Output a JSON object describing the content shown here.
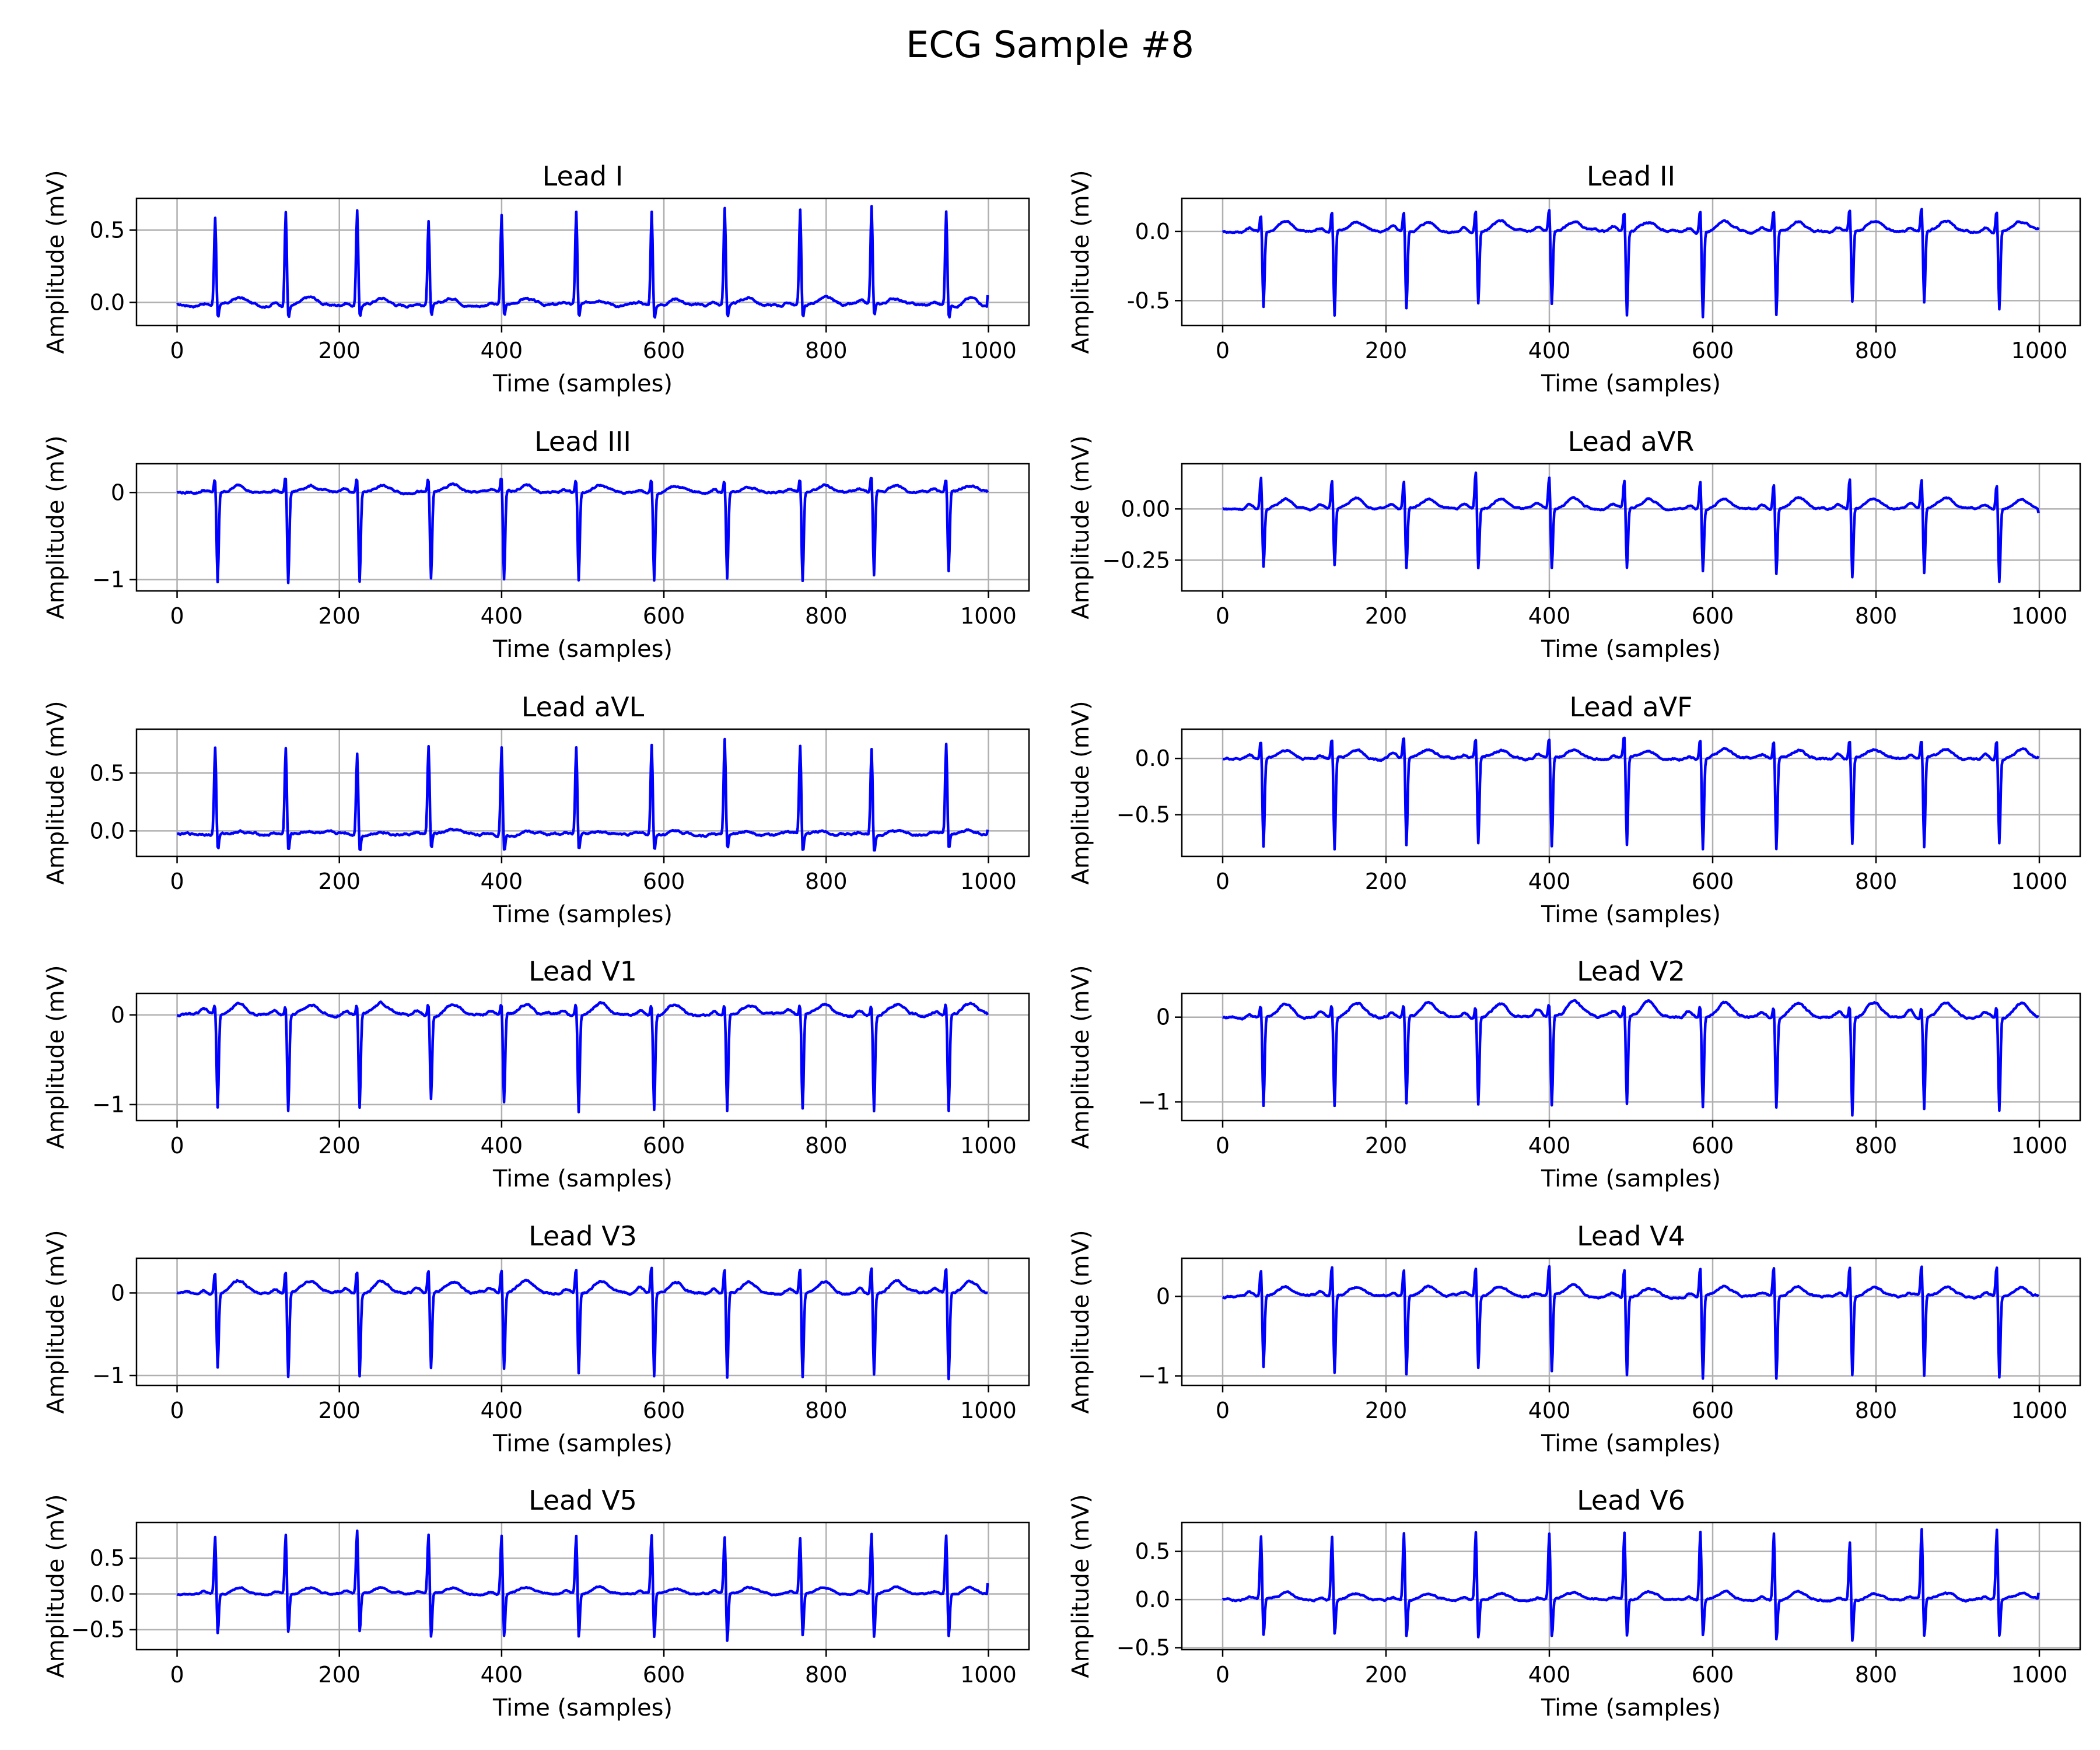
{
  "figure_title": "ECG Sample #8",
  "colors": {
    "signal": "#0000ff",
    "grid": "#b0b0b0",
    "axis": "#000000"
  },
  "chart_data": [
    {
      "type": "line",
      "title": "Lead I",
      "xlabel": "Time (samples)",
      "ylabel": "Amplitude (mV)",
      "xlim": [
        -50,
        1050
      ],
      "ylim": [
        -0.16,
        0.72
      ],
      "xticks": [
        0,
        200,
        400,
        600,
        800,
        1000
      ],
      "yticks": [
        0.0,
        0.5
      ],
      "ytick_labels": [
        "0.0",
        "0.5"
      ],
      "grid": true,
      "series": [
        {
          "baseline": -0.02,
          "r_peaks": [
            47,
            134,
            222,
            310,
            400,
            492,
            585,
            675,
            768,
            856,
            948
          ],
          "r_amp": [
            0.62,
            0.66,
            0.66,
            0.6,
            0.62,
            0.65,
            0.66,
            0.68,
            0.67,
            0.68,
            0.66
          ],
          "s_amp": [
            -0.1,
            -0.11,
            -0.1,
            -0.09,
            -0.1,
            -0.11,
            -0.12,
            -0.1,
            -0.11,
            -0.11,
            -0.11
          ],
          "t_amp": 0.05,
          "end_value": 0.05
        }
      ]
    },
    {
      "type": "line",
      "title": "Lead II",
      "xlabel": "Time (samples)",
      "ylabel": "Amplitude (mV)",
      "xlim": [
        -50,
        1050
      ],
      "ylim": [
        -0.68,
        0.24
      ],
      "xticks": [
        0,
        200,
        400,
        600,
        800,
        1000
      ],
      "yticks": [
        -0.5,
        0.0
      ],
      "ytick_labels": [
        "-0.5",
        "0.0"
      ],
      "grid": true,
      "series": [
        {
          "baseline": 0.0,
          "r_peaks": [
            47,
            134,
            222,
            310,
            400,
            492,
            585,
            675,
            768,
            856,
            948
          ],
          "r_amp": [
            0.15,
            0.18,
            0.17,
            0.18,
            0.19,
            0.17,
            0.19,
            0.18,
            0.18,
            0.2,
            0.18
          ],
          "s_amp": [
            -0.55,
            -0.62,
            -0.57,
            -0.53,
            -0.54,
            -0.62,
            -0.63,
            -0.62,
            -0.53,
            -0.53,
            -0.58
          ],
          "t_amp": 0.07,
          "end_value": 0.03
        }
      ]
    },
    {
      "type": "line",
      "title": "Lead III",
      "xlabel": "Time (samples)",
      "ylabel": "Amplitude (mV)",
      "xlim": [
        -50,
        1050
      ],
      "ylim": [
        -1.13,
        0.33
      ],
      "xticks": [
        0,
        200,
        400,
        600,
        800,
        1000
      ],
      "yticks": [
        -1,
        0
      ],
      "ytick_labels": [
        "−1",
        "0"
      ],
      "grid": true,
      "series": [
        {
          "baseline": 0.0,
          "r_peaks": [
            47,
            134,
            222,
            310,
            400,
            492,
            585,
            675,
            768,
            856,
            948
          ],
          "r_amp": [
            0.18,
            0.22,
            0.22,
            0.2,
            0.21,
            0.19,
            0.21,
            0.19,
            0.2,
            0.21,
            0.19
          ],
          "s_amp": [
            -1.05,
            -1.05,
            -1.03,
            -1.01,
            -1.03,
            -1.02,
            -1.01,
            -0.99,
            -1.04,
            -0.99,
            -0.93
          ],
          "t_amp": 0.08,
          "end_value": 0.0
        }
      ]
    },
    {
      "type": "line",
      "title": "Lead aVR",
      "xlabel": "Time (samples)",
      "ylabel": "Amplitude (mV)",
      "xlim": [
        -50,
        1050
      ],
      "ylim": [
        -0.4,
        0.22
      ],
      "xticks": [
        0,
        200,
        400,
        600,
        800,
        1000
      ],
      "yticks": [
        -0.25,
        0.0
      ],
      "ytick_labels": [
        "−0.25",
        "0.00"
      ],
      "grid": true,
      "series": [
        {
          "baseline": 0.0,
          "r_peaks": [
            47,
            134,
            222,
            310,
            400,
            492,
            585,
            675,
            768,
            856,
            948
          ],
          "r_amp": [
            0.17,
            0.15,
            0.15,
            0.2,
            0.17,
            0.15,
            0.15,
            0.14,
            0.17,
            0.16,
            0.14
          ],
          "s_amp": [
            -0.29,
            -0.29,
            -0.3,
            -0.3,
            -0.3,
            -0.3,
            -0.31,
            -0.33,
            -0.34,
            -0.33,
            -0.36
          ],
          "t_amp": 0.05,
          "end_value": -0.02
        }
      ]
    },
    {
      "type": "line",
      "title": "Lead aVL",
      "xlabel": "Time (samples)",
      "ylabel": "Amplitude (mV)",
      "xlim": [
        -50,
        1050
      ],
      "ylim": [
        -0.22,
        0.88
      ],
      "xticks": [
        0,
        200,
        400,
        600,
        800,
        1000
      ],
      "yticks": [
        0.0,
        0.5
      ],
      "ytick_labels": [
        "0.0",
        "0.5"
      ],
      "grid": true,
      "series": [
        {
          "baseline": -0.03,
          "r_peaks": [
            47,
            134,
            222,
            310,
            400,
            492,
            585,
            675,
            768,
            856,
            948
          ],
          "r_amp": [
            0.77,
            0.76,
            0.72,
            0.76,
            0.78,
            0.76,
            0.79,
            0.83,
            0.78,
            0.76,
            0.77
          ],
          "s_amp": [
            -0.16,
            -0.18,
            -0.17,
            -0.16,
            -0.17,
            -0.17,
            -0.17,
            -0.17,
            -0.18,
            -0.17,
            -0.17
          ],
          "t_amp": 0.03,
          "end_value": 0.01
        }
      ]
    },
    {
      "type": "line",
      "title": "Lead aVF",
      "xlabel": "Time (samples)",
      "ylabel": "Amplitude (mV)",
      "xlim": [
        -50,
        1050
      ],
      "ylim": [
        -0.87,
        0.26
      ],
      "xticks": [
        0,
        200,
        400,
        600,
        800,
        1000
      ],
      "yticks": [
        -0.5,
        0.0
      ],
      "ytick_labels": [
        "−0.5",
        "0.0"
      ],
      "grid": true,
      "series": [
        {
          "baseline": 0.0,
          "r_peaks": [
            47,
            134,
            222,
            310,
            400,
            492,
            585,
            675,
            768,
            856,
            948
          ],
          "r_amp": [
            0.2,
            0.21,
            0.22,
            0.21,
            0.21,
            0.22,
            0.21,
            0.2,
            0.2,
            0.19,
            0.21
          ],
          "s_amp": [
            -0.8,
            -0.82,
            -0.79,
            -0.77,
            -0.8,
            -0.81,
            -0.82,
            -0.8,
            -0.78,
            -0.8,
            -0.76
          ],
          "t_amp": 0.08,
          "end_value": 0.02
        }
      ]
    },
    {
      "type": "line",
      "title": "Lead V1",
      "xlabel": "Time (samples)",
      "ylabel": "Amplitude (mV)",
      "xlim": [
        -50,
        1050
      ],
      "ylim": [
        -1.18,
        0.24
      ],
      "xticks": [
        0,
        200,
        400,
        600,
        800,
        1000
      ],
      "yticks": [
        -1,
        0
      ],
      "ytick_labels": [
        "−1",
        "0"
      ],
      "grid": true,
      "series": [
        {
          "baseline": 0.0,
          "r_peaks": [
            47,
            134,
            222,
            310,
            400,
            492,
            585,
            675,
            768,
            856,
            948
          ],
          "r_amp": [
            0.13,
            0.14,
            0.15,
            0.17,
            0.16,
            0.16,
            0.15,
            0.16,
            0.15,
            0.16,
            0.15
          ],
          "s_amp": [
            -1.05,
            -1.09,
            -1.04,
            -0.94,
            -0.99,
            -1.08,
            -1.08,
            -1.07,
            -1.06,
            -1.06,
            -1.07
          ],
          "t_amp": 0.12,
          "end_value": 0.0
        }
      ]
    },
    {
      "type": "line",
      "title": "Lead V2",
      "xlabel": "Time (samples)",
      "ylabel": "Amplitude (mV)",
      "xlim": [
        -50,
        1050
      ],
      "ylim": [
        -1.22,
        0.28
      ],
      "xticks": [
        0,
        200,
        400,
        600,
        800,
        1000
      ],
      "yticks": [
        -1,
        0
      ],
      "ytick_labels": [
        "−1",
        "0"
      ],
      "grid": true,
      "series": [
        {
          "baseline": 0.0,
          "r_peaks": [
            47,
            134,
            222,
            310,
            400,
            492,
            585,
            675,
            768,
            856,
            948
          ],
          "r_amp": [
            0.17,
            0.18,
            0.17,
            0.18,
            0.18,
            0.17,
            0.18,
            0.17,
            0.18,
            0.17,
            0.17
          ],
          "s_amp": [
            -1.05,
            -1.07,
            -1.05,
            -1.03,
            -1.07,
            -1.05,
            -1.06,
            -1.06,
            -1.16,
            -1.08,
            -1.09
          ],
          "t_amp": 0.17,
          "end_value": 0.0
        }
      ]
    },
    {
      "type": "line",
      "title": "Lead V3",
      "xlabel": "Time (samples)",
      "ylabel": "Amplitude (mV)",
      "xlim": [
        -50,
        1050
      ],
      "ylim": [
        -1.12,
        0.42
      ],
      "xticks": [
        0,
        200,
        400,
        600,
        800,
        1000
      ],
      "yticks": [
        -1,
        0
      ],
      "ytick_labels": [
        "−1",
        "0"
      ],
      "grid": true,
      "series": [
        {
          "baseline": 0.0,
          "r_peaks": [
            47,
            134,
            222,
            310,
            400,
            492,
            585,
            675,
            768,
            856,
            948
          ],
          "r_amp": [
            0.3,
            0.32,
            0.32,
            0.31,
            0.33,
            0.34,
            0.37,
            0.35,
            0.36,
            0.38,
            0.35
          ],
          "s_amp": [
            -0.92,
            -1.03,
            -1.02,
            -0.96,
            -0.93,
            -1.01,
            -1.03,
            -1.05,
            -1.03,
            -1.0,
            -1.07
          ],
          "t_amp": 0.14,
          "end_value": 0.0
        }
      ]
    },
    {
      "type": "line",
      "title": "Lead V4",
      "xlabel": "Time (samples)",
      "ylabel": "Amplitude (mV)",
      "xlim": [
        -50,
        1050
      ],
      "ylim": [
        -1.12,
        0.48
      ],
      "xticks": [
        0,
        200,
        400,
        600,
        800,
        1000
      ],
      "yticks": [
        -1,
        0
      ],
      "ytick_labels": [
        "−1",
        "0"
      ],
      "grid": true,
      "series": [
        {
          "baseline": 0.0,
          "r_peaks": [
            47,
            134,
            222,
            310,
            400,
            492,
            585,
            675,
            768,
            856,
            948
          ],
          "r_amp": [
            0.38,
            0.42,
            0.4,
            0.41,
            0.42,
            0.42,
            0.42,
            0.42,
            0.42,
            0.43,
            0.42
          ],
          "s_amp": [
            -0.92,
            -1.0,
            -1.01,
            -0.93,
            -1.01,
            -1.0,
            -1.07,
            -1.07,
            -1.02,
            -1.04,
            -1.05
          ],
          "t_amp": 0.11,
          "end_value": 0.0
        }
      ]
    },
    {
      "type": "line",
      "title": "Lead V5",
      "xlabel": "Time (samples)",
      "ylabel": "Amplitude (mV)",
      "xlim": [
        -50,
        1050
      ],
      "ylim": [
        -0.78,
        1.0
      ],
      "xticks": [
        0,
        200,
        400,
        600,
        800,
        1000
      ],
      "yticks": [
        -0.5,
        0.0,
        0.5
      ],
      "ytick_labels": [
        "−0.5",
        "0.0",
        "0.5"
      ],
      "grid": true,
      "series": [
        {
          "baseline": 0.0,
          "r_peaks": [
            47,
            134,
            222,
            310,
            400,
            492,
            585,
            675,
            768,
            856,
            948
          ],
          "r_amp": [
            0.84,
            0.85,
            0.9,
            0.87,
            0.86,
            0.86,
            0.86,
            0.83,
            0.82,
            0.89,
            0.86
          ],
          "s_amp": [
            -0.6,
            -0.6,
            -0.59,
            -0.66,
            -0.65,
            -0.65,
            -0.67,
            -0.72,
            -0.63,
            -0.66,
            -0.64
          ],
          "t_amp": 0.09,
          "end_value": 0.15
        }
      ]
    },
    {
      "type": "line",
      "title": "Lead V6",
      "xlabel": "Time (samples)",
      "ylabel": "Amplitude (mV)",
      "xlim": [
        -50,
        1050
      ],
      "ylim": [
        -0.52,
        0.8
      ],
      "xticks": [
        0,
        200,
        400,
        600,
        800,
        1000
      ],
      "yticks": [
        -0.5,
        0.0,
        0.5
      ],
      "ytick_labels": [
        "−0.5",
        "0.0",
        "0.5"
      ],
      "grid": true,
      "series": [
        {
          "baseline": 0.0,
          "r_peaks": [
            47,
            134,
            222,
            310,
            400,
            492,
            585,
            675,
            768,
            856,
            948
          ],
          "r_amp": [
            0.67,
            0.69,
            0.73,
            0.73,
            0.7,
            0.73,
            0.73,
            0.73,
            0.63,
            0.75,
            0.75
          ],
          "s_amp": [
            -0.42,
            -0.38,
            -0.42,
            -0.44,
            -0.43,
            -0.42,
            -0.41,
            -0.45,
            -0.47,
            -0.44,
            -0.42
          ],
          "t_amp": 0.07,
          "end_value": 0.07
        }
      ]
    }
  ]
}
